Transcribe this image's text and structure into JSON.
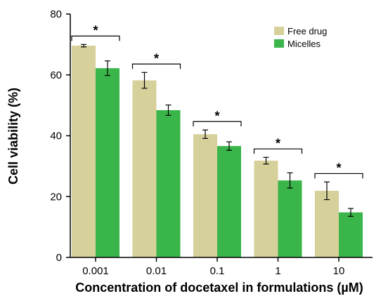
{
  "chart_data": {
    "type": "bar",
    "title": "",
    "xlabel": "Concentration of docetaxel in formulations (µM)",
    "ylabel": "Cell viability (%)",
    "ylim": [
      0,
      80
    ],
    "yticks": [
      "0",
      "20",
      "40",
      "60",
      "80"
    ],
    "categories": [
      "0.001",
      "0.01",
      "0.1",
      "1",
      "10"
    ],
    "series": [
      {
        "name": "Free drug",
        "color": "#d6d09a",
        "values": [
          69.6,
          58.2,
          40.5,
          31.8,
          21.9
        ],
        "errors": [
          0.4,
          2.6,
          1.4,
          1.1,
          2.9
        ]
      },
      {
        "name": "Micelles",
        "color": "#3ab54a",
        "values": [
          62.2,
          48.4,
          36.6,
          25.3,
          14.8
        ],
        "errors": [
          2.4,
          1.7,
          1.4,
          2.5,
          1.3
        ]
      }
    ],
    "significance": [
      "*",
      "*",
      "*",
      "*",
      "*"
    ],
    "legend_position": "top-right"
  }
}
